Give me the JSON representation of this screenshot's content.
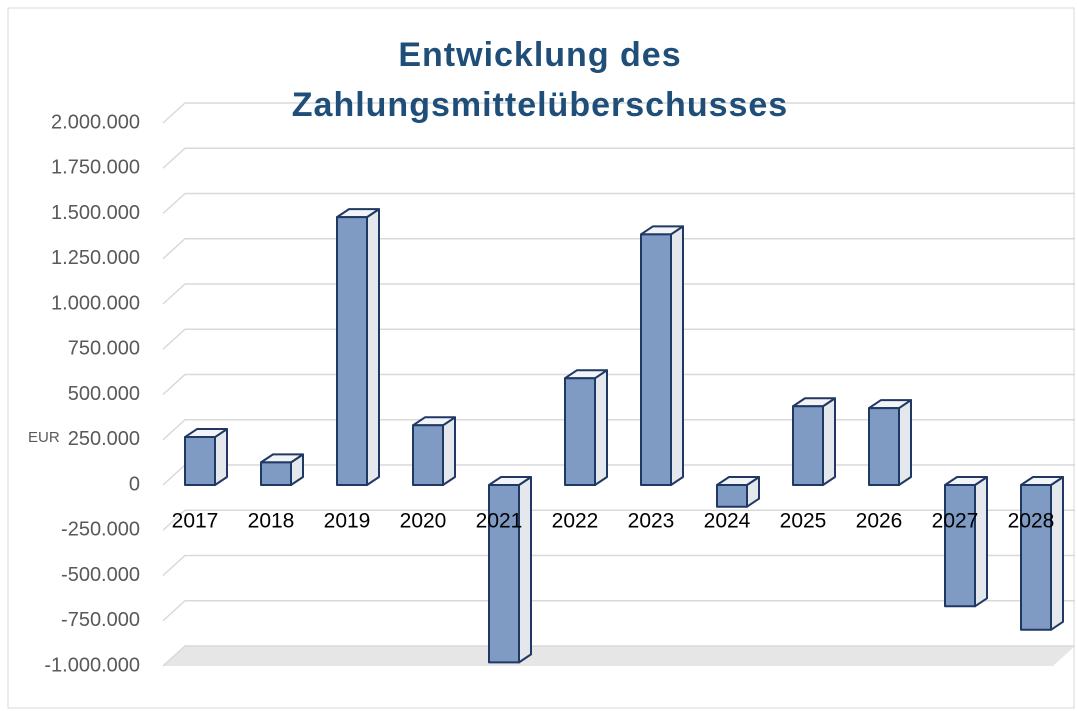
{
  "chart_data": {
    "type": "bar3d",
    "title": "Entwicklung des Zahlungsmittelüberschusses",
    "y_axis_label": "EUR",
    "categories": [
      "2017",
      "2018",
      "2019",
      "2020",
      "2021",
      "2022",
      "2023",
      "2024",
      "2025",
      "2026",
      "2027",
      "2028"
    ],
    "values": [
      265000,
      125000,
      1480000,
      330000,
      -980000,
      590000,
      1385000,
      -120000,
      435000,
      425000,
      -670000,
      -800000
    ],
    "color": "#7f9bc4",
    "ylim": [
      -1000000,
      2000000
    ],
    "yticks": [
      {
        "value": -1000000,
        "label": "-1.000.000"
      },
      {
        "value": -750000,
        "label": "-750.000"
      },
      {
        "value": -500000,
        "label": "-500.000"
      },
      {
        "value": -250000,
        "label": "-250.000"
      },
      0,
      {
        "value": 250000,
        "label": "250.000"
      },
      {
        "value": 500000,
        "label": "500.000"
      },
      {
        "value": 750000,
        "label": "750.000"
      },
      {
        "value": 1000000,
        "label": "1.000.000"
      },
      {
        "value": 1250000,
        "label": "1.250.000"
      },
      {
        "value": 1500000,
        "label": "1.500.000"
      },
      {
        "value": 1750000,
        "label": "1.750.000"
      },
      {
        "value": 2000000,
        "label": "2.000.000"
      }
    ],
    "grid": true
  }
}
